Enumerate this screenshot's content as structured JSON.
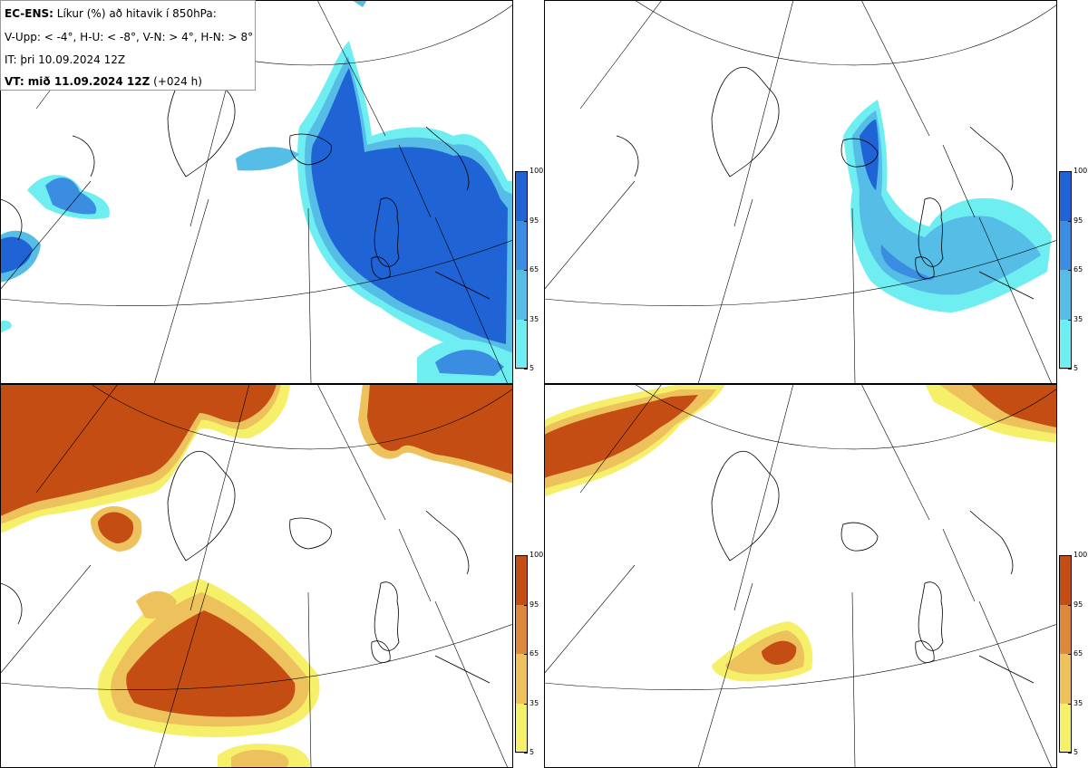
{
  "title": {
    "model": "EC-ENS:",
    "description": "Líkur (%) að hitavik í 850hPa:",
    "thresholds": "V-Upp: < -4°, H-U: < -8°, V-N: > 4°, H-N: > 8°",
    "init_time": "IT: þri 10.09.2024 12Z",
    "valid_label": "VT: mið 11.09.2024 12Z",
    "lead_time": "(+024 h)"
  },
  "colorbars": {
    "cold": {
      "ticks": [
        "100",
        "95",
        "65",
        "35",
        "5"
      ],
      "colors": [
        "#1f63d4",
        "#3a8de0",
        "#55bde6",
        "#6feef2",
        "#ffffff"
      ]
    },
    "warm": {
      "ticks": [
        "100",
        "95",
        "65",
        "35",
        "5"
      ],
      "colors": [
        "#c44d14",
        "#dc8a3a",
        "#edc15b",
        "#f6ef6a",
        "#ffffff"
      ]
    }
  },
  "panels": [
    {
      "name": "V-Upp",
      "colormap": "cold"
    },
    {
      "name": "H-U",
      "colormap": "cold"
    },
    {
      "name": "V-N",
      "colormap": "warm"
    },
    {
      "name": "H-N",
      "colormap": "warm"
    }
  ]
}
